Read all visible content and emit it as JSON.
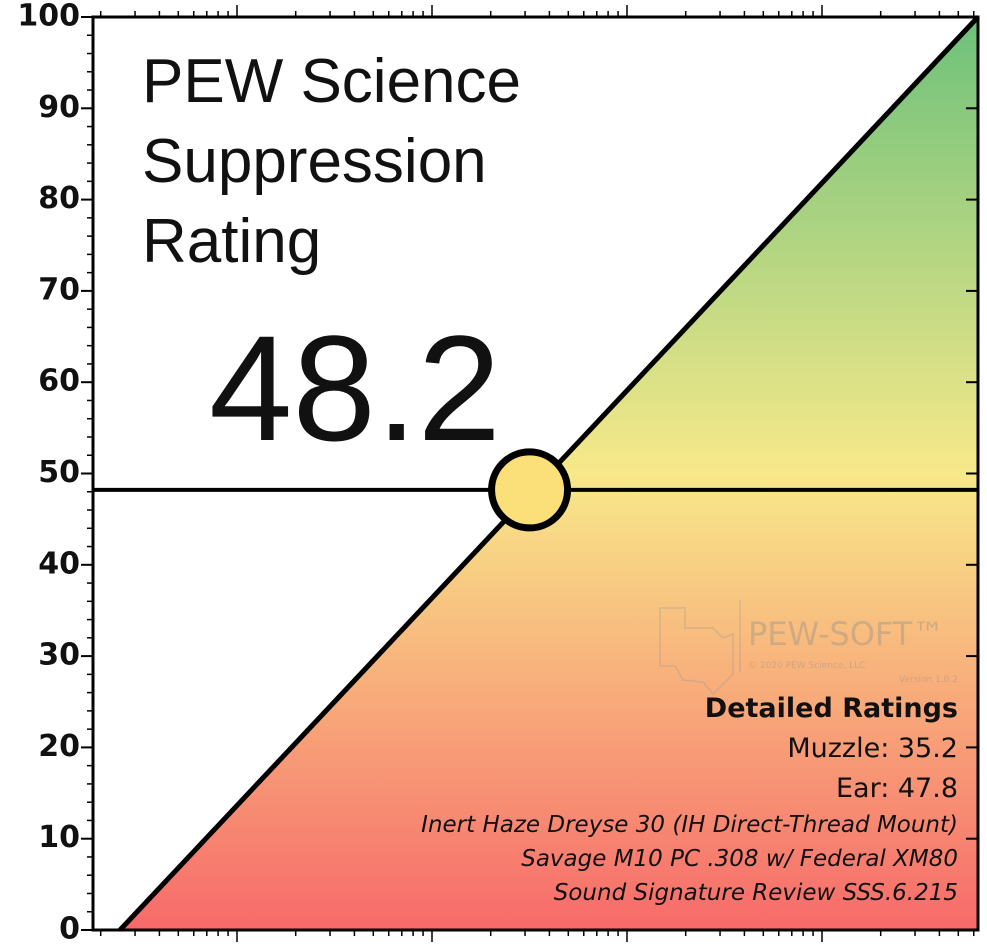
{
  "chart_data": {
    "type": "rating",
    "title": "PEW Science Suppression Rating",
    "value": 48.2,
    "ylim": [
      0,
      100
    ],
    "yticks": [
      0,
      10,
      20,
      30,
      40,
      50,
      60,
      70,
      80,
      90,
      100
    ],
    "gradient_colors": [
      "#f76a6a",
      "#f8e98a",
      "#6cc17a"
    ],
    "details_title": "Detailed Ratings",
    "details": [
      "Muzzle: 35.2",
      "Ear: 47.8"
    ],
    "notes": [
      "Inert Haze Dreyse 30 (IH Direct-Thread Mount)",
      "Savage M10 PC .308 w/ Federal XM80",
      "Sound Signature Review SSS.6.215"
    ],
    "watermark": {
      "brand": "PEW-SOFT™",
      "copyright": "© 2020 PEW Science, LLC",
      "version": "Version 1.0.2"
    }
  }
}
